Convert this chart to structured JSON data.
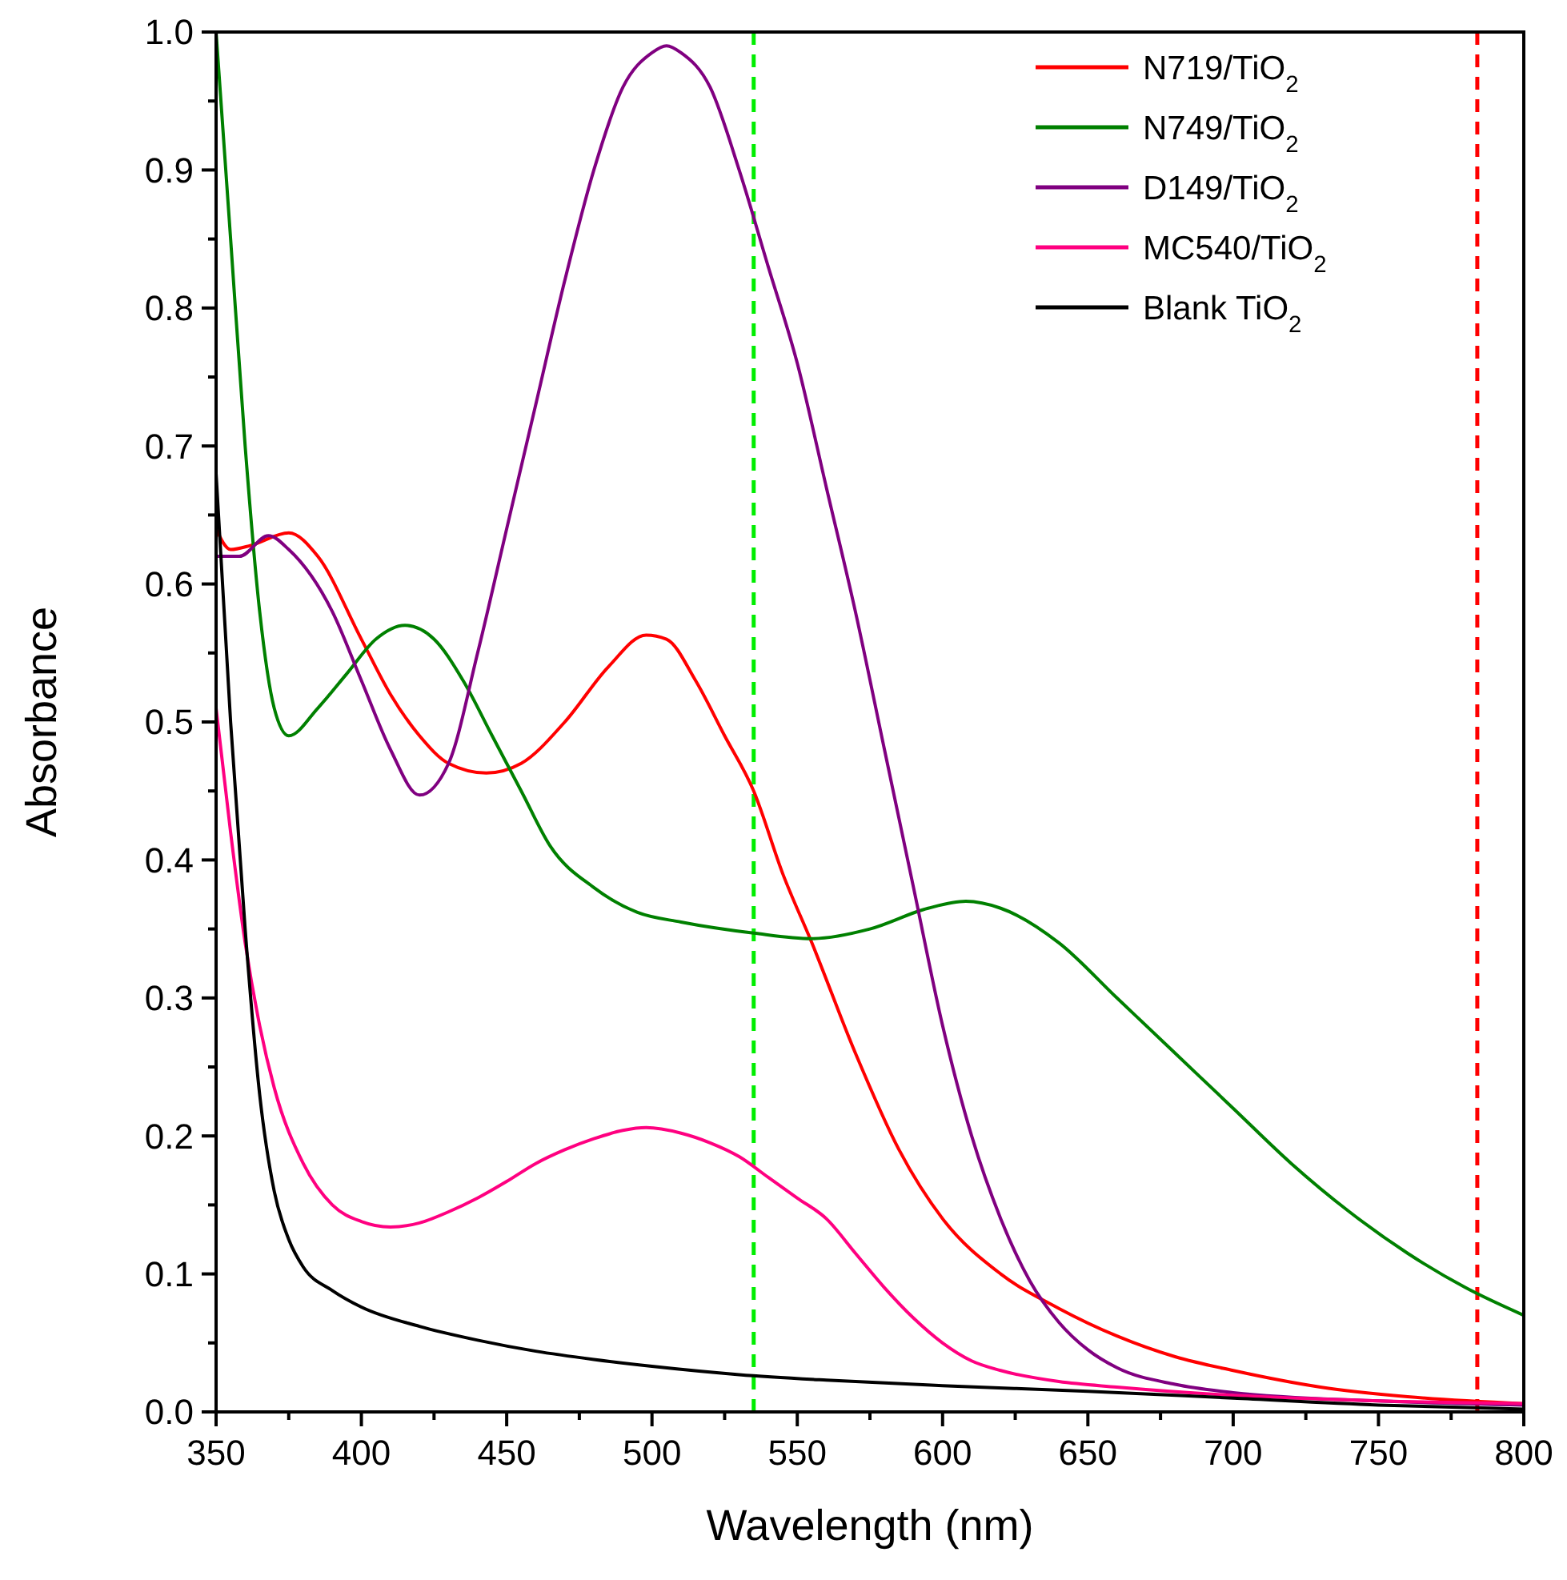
{
  "chart_data": {
    "type": "line",
    "xlabel": "Wavelength (nm)",
    "ylabel": "Absorbance",
    "xlim": [
      350,
      800
    ],
    "ylim": [
      0,
      1
    ],
    "xticks": [
      350,
      {
        "value": 375,
        "label": null
      },
      400,
      {
        "value": 425,
        "label": null
      },
      450,
      {
        "value": 475,
        "label": null
      },
      500,
      {
        "value": 525,
        "label": null
      },
      550,
      {
        "value": 575,
        "label": null
      },
      600,
      {
        "value": 625,
        "label": null
      },
      650,
      {
        "value": 675,
        "label": null
      },
      700,
      {
        "value": 725,
        "label": null
      },
      750,
      {
        "value": 775,
        "label": null
      },
      800
    ],
    "yticks": [
      {
        "value": 0,
        "label": "0.0"
      },
      {
        "value": 0.05,
        "label": null
      },
      0.1,
      {
        "value": 0.15,
        "label": null
      },
      0.2,
      {
        "value": 0.25,
        "label": null
      },
      0.3,
      {
        "value": 0.35,
        "label": null
      },
      0.4,
      {
        "value": 0.45,
        "label": null
      },
      0.5,
      {
        "value": 0.55,
        "label": null
      },
      0.6,
      {
        "value": 0.65,
        "label": null
      },
      0.7,
      {
        "value": 0.75,
        "label": null
      },
      0.8,
      {
        "value": 0.85,
        "label": null
      },
      0.9,
      {
        "value": 0.95,
        "label": null
      },
      {
        "value": 1,
        "label": "1.0"
      }
    ],
    "grid": false,
    "legend": "top right",
    "line_style": "solid",
    "marker": "none",
    "ref_lines": [
      {
        "axis": "x",
        "value": 535,
        "color": "#00ee00",
        "line_style": "dashed"
      },
      {
        "axis": "x",
        "value": 784,
        "color": "#ff0000",
        "line_style": "dashed"
      }
    ],
    "series": [
      {
        "name": "N719/TiO$_{2}$",
        "color": "#ff0000",
        "x": [
          350,
          355,
          362,
          375,
          385,
          400,
          410,
          420,
          430,
          443,
          455,
          470,
          485,
          498,
          505,
          515,
          525,
          535,
          545,
          555,
          570,
          585,
          600,
          620,
          640,
          660,
          680,
          700,
          730,
          760,
          800
        ],
        "values": [
          0.64,
          0.625,
          0.628,
          0.637,
          0.62,
          0.56,
          0.52,
          0.49,
          0.47,
          0.463,
          0.47,
          0.5,
          0.54,
          0.563,
          0.56,
          0.53,
          0.49,
          0.45,
          0.39,
          0.34,
          0.26,
          0.19,
          0.14,
          0.1,
          0.075,
          0.055,
          0.04,
          0.03,
          0.018,
          0.011,
          0.006
        ]
      },
      {
        "name": "N749/TiO$_{2}$",
        "color": "#008000",
        "x": [
          350,
          355,
          360,
          365,
          370,
          375,
          385,
          395,
          405,
          415,
          425,
          435,
          445,
          455,
          465,
          480,
          495,
          510,
          535,
          555,
          575,
          595,
          608,
          620,
          640,
          660,
          680,
          700,
          720,
          740,
          760,
          780,
          800
        ],
        "values": [
          1.0,
          0.85,
          0.7,
          0.58,
          0.51,
          0.49,
          0.51,
          0.535,
          0.56,
          0.57,
          0.56,
          0.53,
          0.49,
          0.45,
          0.41,
          0.38,
          0.362,
          0.355,
          0.347,
          0.343,
          0.35,
          0.365,
          0.37,
          0.365,
          0.34,
          0.3,
          0.26,
          0.22,
          0.18,
          0.145,
          0.115,
          0.09,
          0.07
        ]
      },
      {
        "name": "D149/TiO$_{2}$",
        "color": "#800080",
        "x": [
          350,
          358,
          368,
          375,
          390,
          400,
          410,
          420,
          430,
          440,
          450,
          460,
          470,
          480,
          490,
          500,
          505,
          510,
          520,
          530,
          540,
          550,
          560,
          570,
          580,
          590,
          600,
          610,
          620,
          630,
          640,
          650,
          660,
          680,
          700,
          750,
          800
        ],
        "values": [
          0.62,
          0.62,
          0.635,
          0.625,
          0.58,
          0.53,
          0.48,
          0.447,
          0.47,
          0.55,
          0.64,
          0.73,
          0.82,
          0.9,
          0.96,
          0.985,
          0.99,
          0.985,
          0.96,
          0.9,
          0.83,
          0.76,
          0.67,
          0.58,
          0.48,
          0.38,
          0.28,
          0.2,
          0.14,
          0.095,
          0.065,
          0.045,
          0.032,
          0.02,
          0.014,
          0.008,
          0.005
        ]
      },
      {
        "name": "MC540/TiO$_{2}$",
        "color": "#ff0080",
        "x": [
          350,
          355,
          360,
          365,
          370,
          380,
          390,
          400,
          410,
          420,
          430,
          440,
          450,
          460,
          470,
          480,
          490,
          498,
          510,
          520,
          530,
          540,
          550,
          560,
          570,
          580,
          590,
          600,
          610,
          620,
          640,
          660,
          700,
          750,
          800
        ],
        "values": [
          0.51,
          0.42,
          0.34,
          0.28,
          0.235,
          0.18,
          0.15,
          0.138,
          0.134,
          0.137,
          0.145,
          0.155,
          0.167,
          0.18,
          0.19,
          0.198,
          0.204,
          0.206,
          0.202,
          0.195,
          0.185,
          0.17,
          0.155,
          0.14,
          0.115,
          0.09,
          0.068,
          0.05,
          0.037,
          0.03,
          0.022,
          0.018,
          0.012,
          0.008,
          0.006
        ]
      },
      {
        "name": "Blank TiO$_{2}$",
        "color": "#000000",
        "x": [
          350,
          355,
          360,
          365,
          370,
          375,
          380,
          390,
          400,
          420,
          440,
          460,
          480,
          500,
          530,
          560,
          600,
          650,
          700,
          750,
          800
        ],
        "values": [
          0.68,
          0.5,
          0.35,
          0.23,
          0.16,
          0.125,
          0.105,
          0.088,
          0.076,
          0.062,
          0.052,
          0.044,
          0.038,
          0.033,
          0.027,
          0.023,
          0.019,
          0.015,
          0.01,
          0.005,
          0.002
        ]
      }
    ]
  }
}
